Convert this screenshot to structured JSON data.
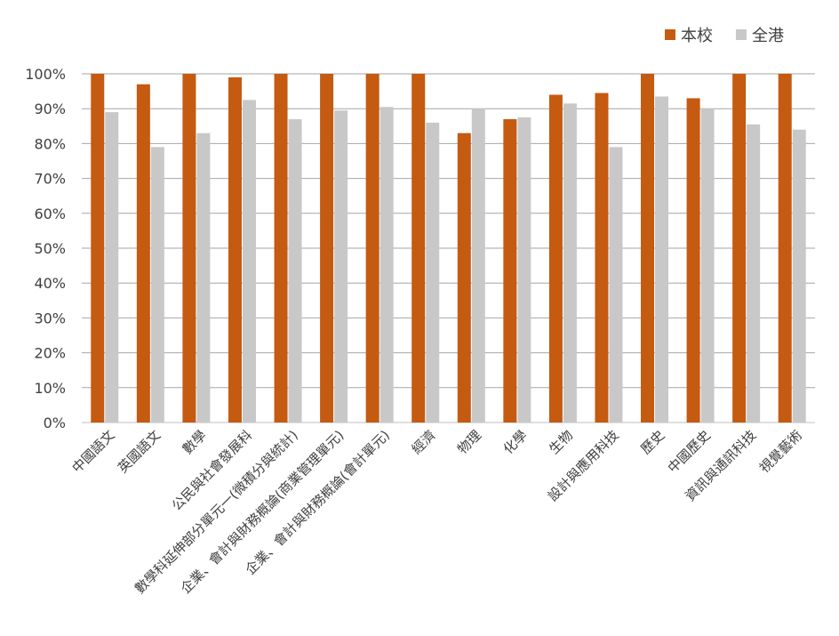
{
  "chart_data": {
    "type": "bar",
    "categories": [
      "中國語文",
      "英國語文",
      "數學",
      "公民與社會發展科",
      "數學科延伸部分單元一(微積分與統計)",
      "企業、會計與財務概論(商業管理單元)",
      "企業、會計與財務概論(會計單元)",
      "經濟",
      "物理",
      "化學",
      "生物",
      "設計與應用科技",
      "歷史",
      "中國歷史",
      "資訊與通訊科技",
      "視覺藝術"
    ],
    "series": [
      {
        "name": "本校",
        "color": "#C55A11",
        "values": [
          100,
          97,
          100,
          99,
          100,
          100,
          100,
          100,
          83,
          87,
          94,
          94.5,
          100,
          93,
          100,
          100
        ]
      },
      {
        "name": "全港",
        "color": "#C8C8C8",
        "values": [
          89,
          79,
          83,
          92.5,
          87,
          89.5,
          90.5,
          86,
          90,
          87.5,
          91.5,
          79,
          93.5,
          90,
          85.5,
          84
        ]
      }
    ],
    "yticks": [
      "0%",
      "10%",
      "20%",
      "30%",
      "40%",
      "50%",
      "60%",
      "70%",
      "80%",
      "90%",
      "100%"
    ],
    "ylim": [
      0,
      100
    ],
    "grid": true,
    "legend_position": "top-right"
  }
}
